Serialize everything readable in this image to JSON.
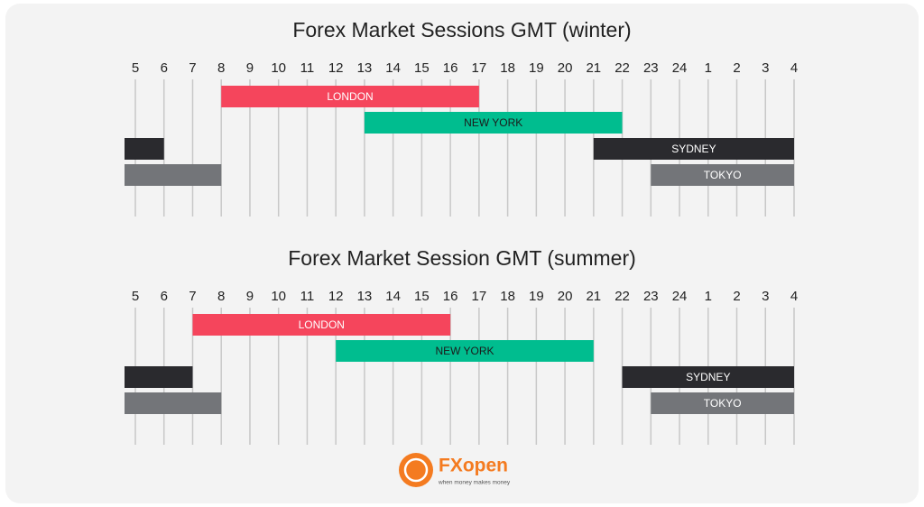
{
  "chart_data": [
    {
      "type": "gantt",
      "title": "Forex Market Sessions GMT (winter)",
      "categories": [
        5,
        6,
        7,
        8,
        9,
        10,
        11,
        12,
        13,
        14,
        15,
        16,
        17,
        18,
        19,
        20,
        21,
        22,
        23,
        24,
        1,
        2,
        3,
        4
      ],
      "series": [
        {
          "name": "LONDON",
          "color": "#f5455c",
          "segments": [
            {
              "start": 8,
              "end": 17
            }
          ]
        },
        {
          "name": "NEW YORK",
          "color": "#00bd8f",
          "segments": [
            {
              "start": 13,
              "end": 22
            }
          ]
        },
        {
          "name": "SYDNEY",
          "color": "#2a2a2e",
          "segments": [
            {
              "start": 21,
              "end": 4
            },
            {
              "end": 6
            }
          ]
        },
        {
          "name": "TOKYO",
          "color": "#737579",
          "segments": [
            {
              "start": 23,
              "end": 4
            },
            {
              "end": 8
            }
          ]
        }
      ],
      "grid": true
    },
    {
      "type": "gantt",
      "title": "Forex Market Session GMT (summer)",
      "categories": [
        5,
        6,
        7,
        8,
        9,
        10,
        11,
        12,
        13,
        14,
        15,
        16,
        17,
        18,
        19,
        20,
        21,
        22,
        23,
        24,
        1,
        2,
        3,
        4
      ],
      "series": [
        {
          "name": "LONDON",
          "color": "#f5455c",
          "segments": [
            {
              "start": 7,
              "end": 16
            }
          ]
        },
        {
          "name": "NEW YORK",
          "color": "#00bd8f",
          "segments": [
            {
              "start": 12,
              "end": 21
            }
          ]
        },
        {
          "name": "SYDNEY",
          "color": "#2a2a2e",
          "segments": [
            {
              "start": 22,
              "end": 4
            },
            {
              "end": 7
            }
          ]
        },
        {
          "name": "TOKYO",
          "color": "#737579",
          "segments": [
            {
              "start": 23,
              "end": 4
            },
            {
              "end": 8
            }
          ]
        }
      ],
      "grid": true
    }
  ],
  "logo": {
    "name": "FXopen",
    "tagline": "when money makes money"
  }
}
